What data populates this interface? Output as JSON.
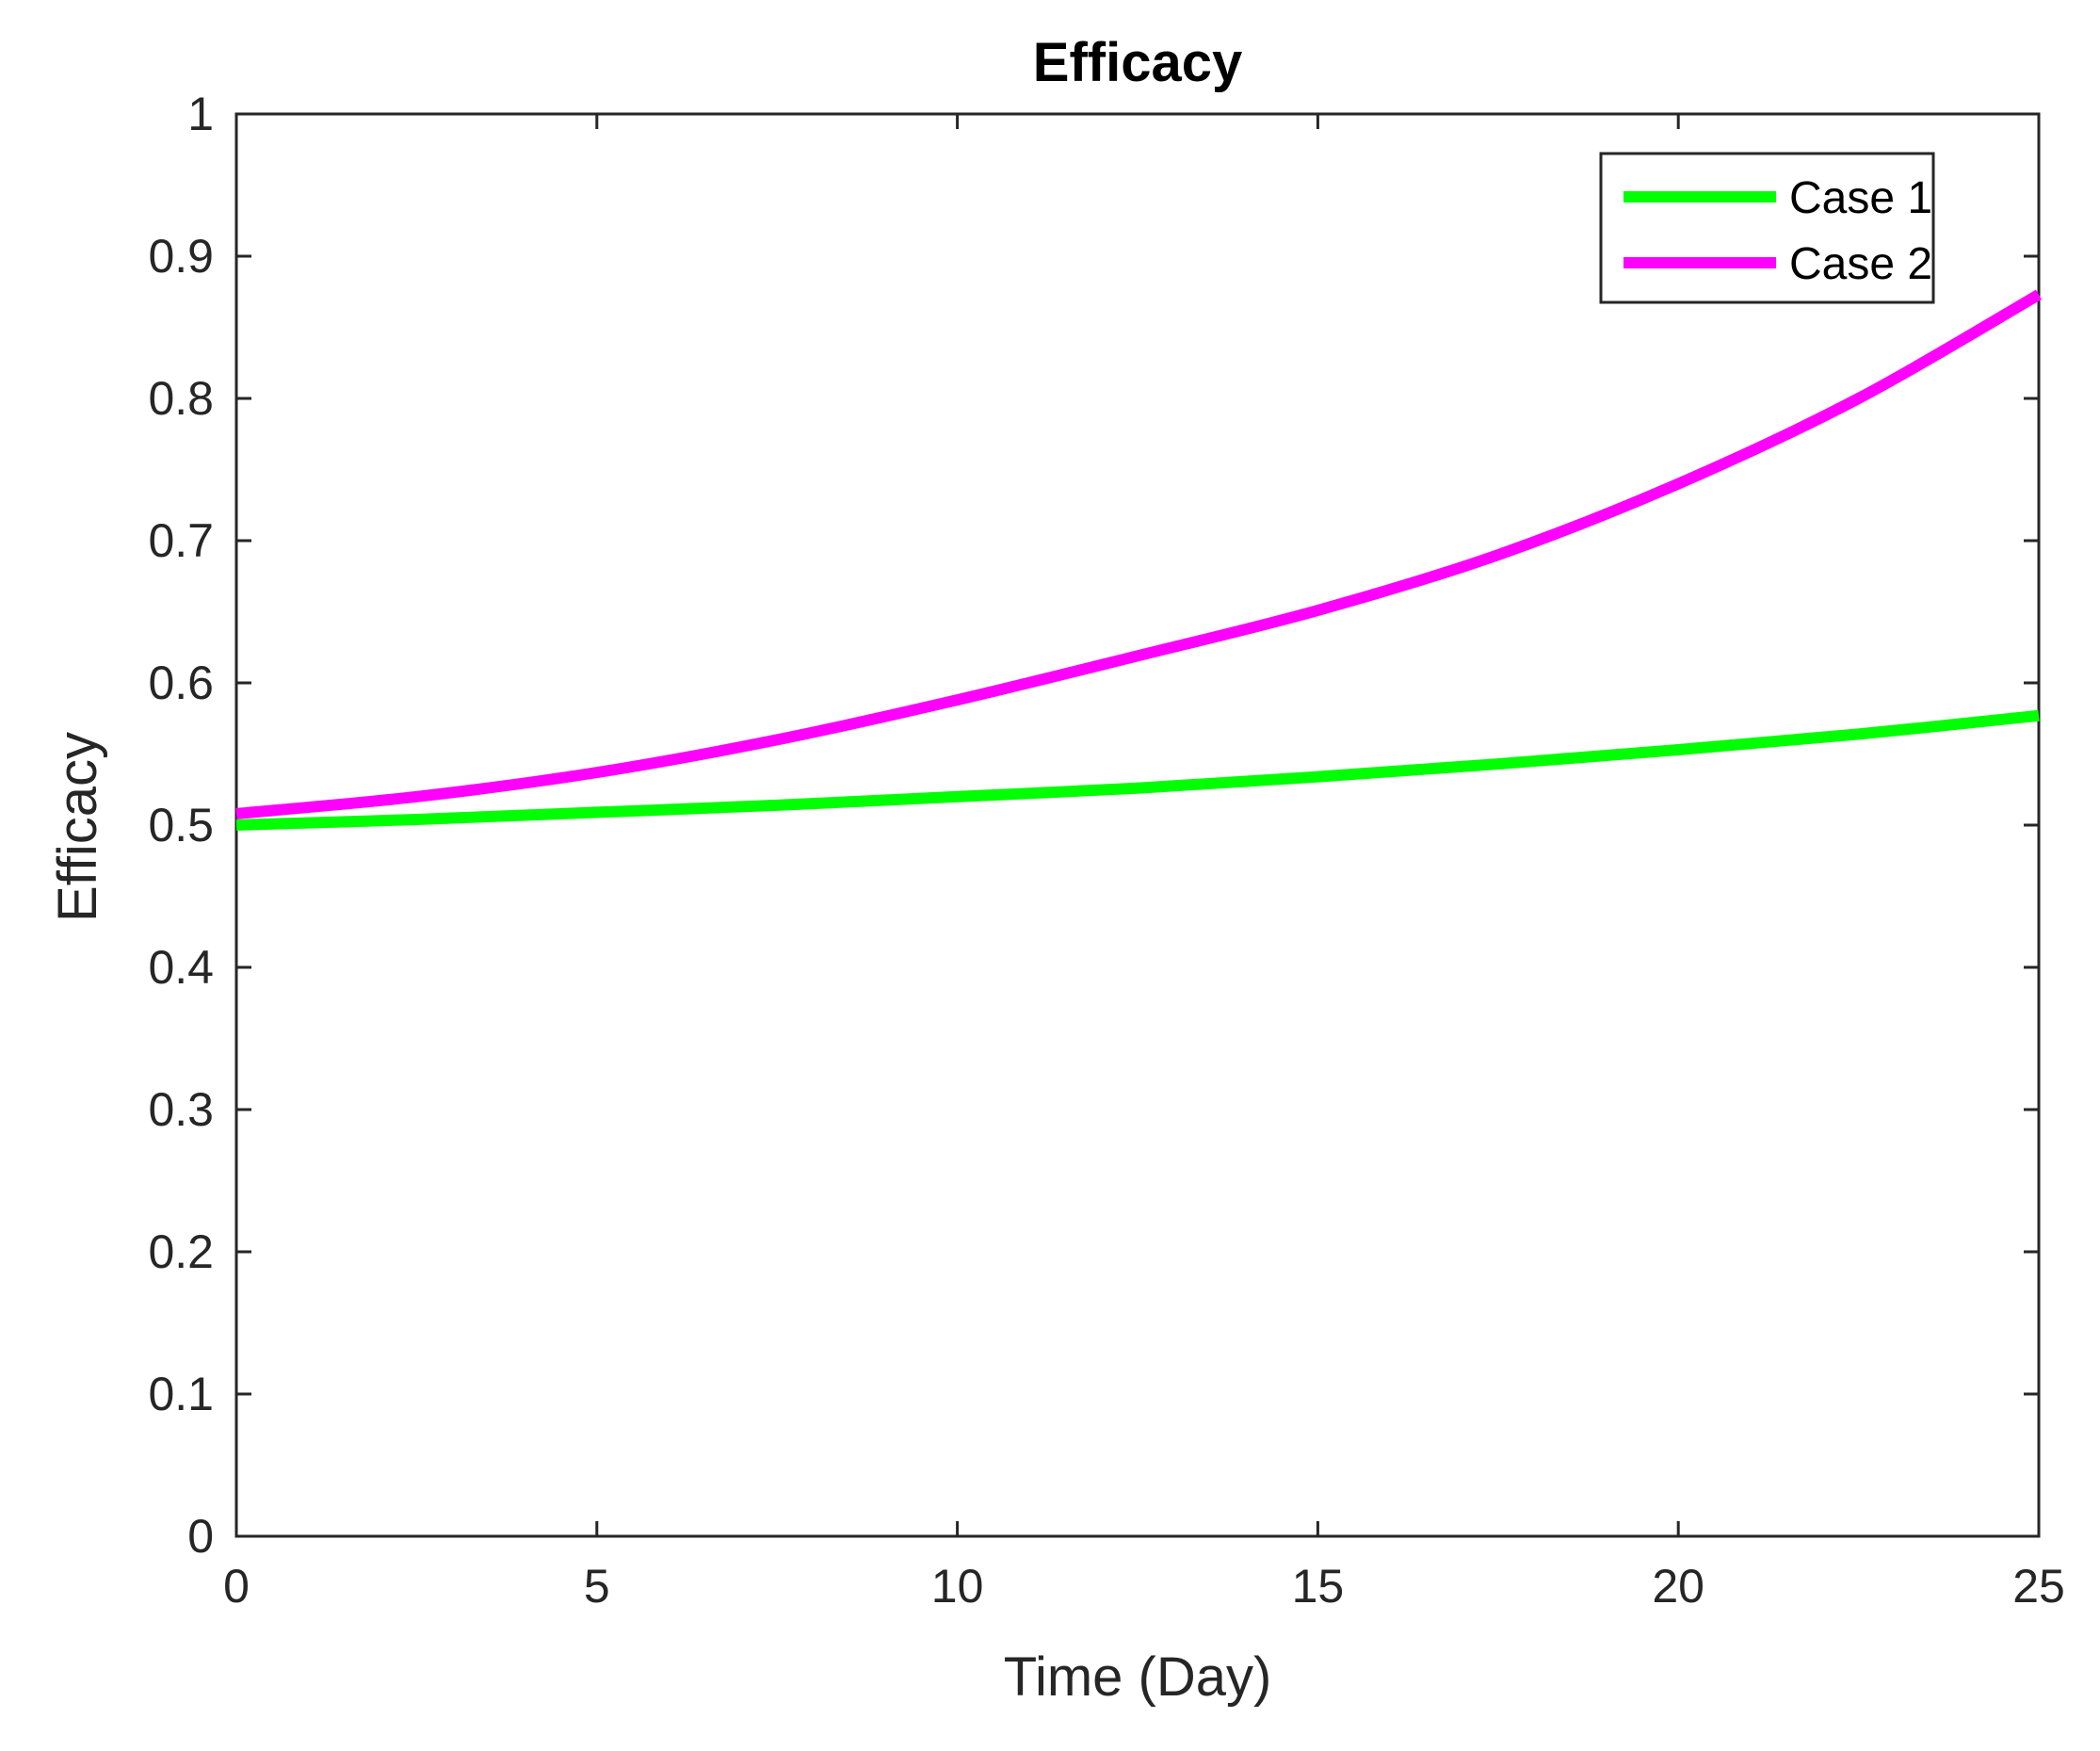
{
  "chart_data": {
    "type": "line",
    "title": "Efficacy",
    "xlabel": "Time (Day)",
    "ylabel": "Efficacy",
    "xlim": [
      0,
      25
    ],
    "ylim": [
      0,
      1
    ],
    "x_ticks": [
      0,
      5,
      10,
      15,
      20,
      25
    ],
    "y_ticks": [
      0,
      0.1,
      0.2,
      0.3,
      0.4,
      0.5,
      0.6,
      0.7,
      0.8,
      0.9,
      1
    ],
    "x_tick_labels": [
      "0",
      "5",
      "10",
      "15",
      "20",
      "25"
    ],
    "y_tick_labels": [
      "0",
      "0.1",
      "0.2",
      "0.3",
      "0.4",
      "0.5",
      "0.6",
      "0.7",
      "0.8",
      "0.9",
      "1"
    ],
    "grid": false,
    "legend_position": "top-right",
    "x": [
      0,
      2.5,
      5,
      7.5,
      10,
      12.5,
      15,
      17.5,
      20,
      22.5,
      25
    ],
    "series": [
      {
        "name": "Case 1",
        "color": "#00ff00",
        "values": [
          0.5,
          0.504,
          0.509,
          0.514,
          0.52,
          0.526,
          0.534,
          0.543,
          0.553,
          0.564,
          0.577
        ]
      },
      {
        "name": "Case 2",
        "color": "#ff00ff",
        "values": [
          0.508,
          0.52,
          0.537,
          0.56,
          0.588,
          0.619,
          0.651,
          0.69,
          0.74,
          0.8,
          0.873
        ]
      }
    ]
  }
}
